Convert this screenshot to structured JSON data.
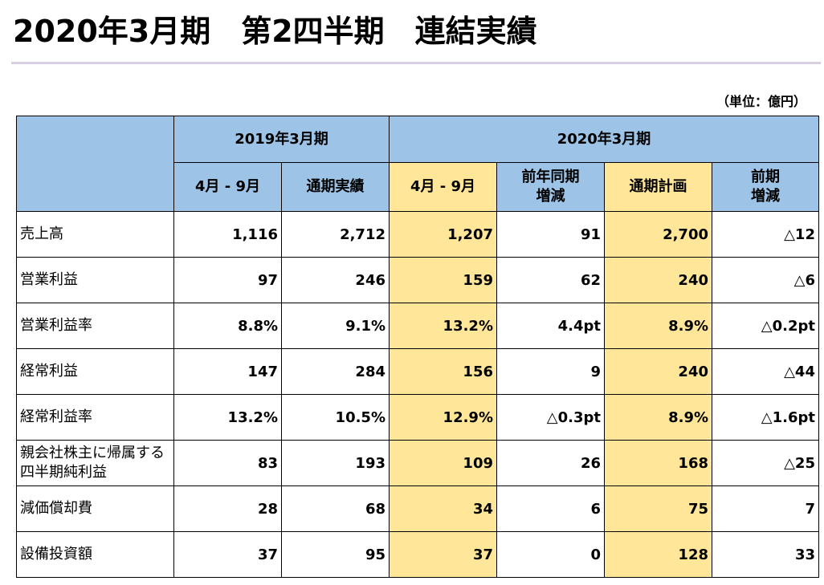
{
  "title": "2020年3月期　第2四半期　連結実績",
  "unit": "（単位：億円）",
  "table": {
    "groups": [
      "2019年3月期",
      "2020年3月期"
    ],
    "columns": [
      "4月 - 9月",
      "通期実績",
      "4月 - 9月",
      "前年同期\n増減",
      "通期計画",
      "前期\n増減"
    ],
    "rows": [
      {
        "label": "売上高",
        "values": [
          "1,116",
          "2,712",
          "1,207",
          "91",
          "2,700",
          "△12"
        ]
      },
      {
        "label": "営業利益",
        "values": [
          "97",
          "246",
          "159",
          "62",
          "240",
          "△6"
        ]
      },
      {
        "label": "営業利益率",
        "values": [
          "8.8%",
          "9.1%",
          "13.2%",
          "4.4pt",
          "8.9%",
          "△0.2pt"
        ]
      },
      {
        "label": "経常利益",
        "values": [
          "147",
          "284",
          "156",
          "9",
          "240",
          "△44"
        ]
      },
      {
        "label": "経常利益率",
        "values": [
          "13.2%",
          "10.5%",
          "12.9%",
          "△0.3pt",
          "8.9%",
          "△1.6pt"
        ]
      },
      {
        "label": "親会社株主に帰属する\n四半期純利益",
        "values": [
          "83",
          "193",
          "109",
          "26",
          "168",
          "△25"
        ]
      },
      {
        "label": "減価償却費",
        "values": [
          "28",
          "68",
          "34",
          "6",
          "75",
          "7"
        ]
      },
      {
        "label": "設備投資額",
        "values": [
          "37",
          "95",
          "37",
          "0",
          "128",
          "33"
        ]
      }
    ]
  },
  "colors": {
    "header_blue": "#9dc3e6",
    "highlight_yellow": "#ffe699"
  }
}
